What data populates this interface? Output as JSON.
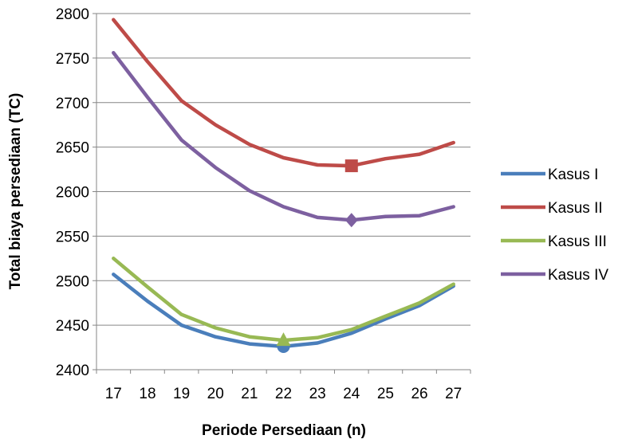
{
  "chart_data": {
    "type": "line",
    "xlabel": "Periode Persediaan (n)",
    "ylabel": "Total biaya persediaan (TC)",
    "x": [
      17,
      18,
      19,
      20,
      21,
      22,
      23,
      24,
      25,
      26,
      27
    ],
    "ylim": [
      2400,
      2800
    ],
    "yticks": [
      2400,
      2450,
      2500,
      2550,
      2600,
      2650,
      2700,
      2750,
      2800
    ],
    "grid": "horizontal",
    "legend_position": "right",
    "series": [
      {
        "name": "Kasus I",
        "color": "#4a7ebb",
        "values": [
          2507,
          2477,
          2450,
          2437,
          2429,
          2426,
          2430,
          2441,
          2457,
          2472,
          2494
        ],
        "marker": {
          "type": "circle",
          "x": 22,
          "y": 2426
        }
      },
      {
        "name": "Kasus II",
        "color": "#be4b48",
        "values": [
          2793,
          2746,
          2702,
          2675,
          2653,
          2638,
          2630,
          2629,
          2637,
          2642,
          2655
        ],
        "marker": {
          "type": "square",
          "x": 24,
          "y": 2629
        }
      },
      {
        "name": "Kasus III",
        "color": "#98b954",
        "values": [
          2525,
          2493,
          2462,
          2447,
          2437,
          2433,
          2436,
          2445,
          2460,
          2475,
          2496
        ],
        "marker": {
          "type": "triangle",
          "x": 22,
          "y": 2433
        }
      },
      {
        "name": "Kasus IV",
        "color": "#7d60a0",
        "values": [
          2756,
          2706,
          2658,
          2627,
          2601,
          2583,
          2571,
          2568,
          2572,
          2573,
          2583
        ],
        "marker": {
          "type": "diamond",
          "x": 24,
          "y": 2568
        }
      }
    ]
  }
}
